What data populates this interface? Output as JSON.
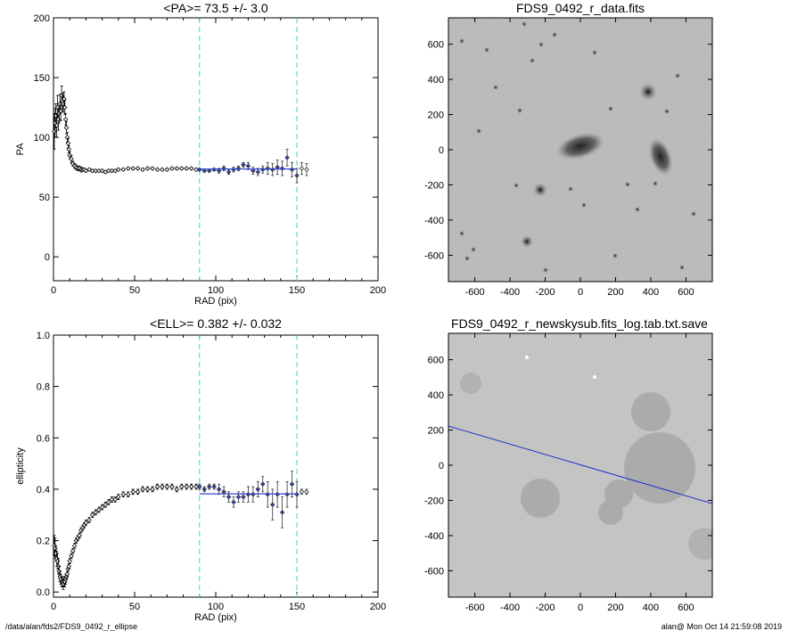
{
  "footer": {
    "path": "/data/alan/fds2/FDS9_0492_r_ellipse",
    "user_time": "alan@  Mon Oct 14 21:59:08 2019"
  },
  "colors": {
    "blue": "#3344cc",
    "cyan": "#44ccdd",
    "black": "#000000"
  },
  "chart_data": [
    {
      "type": "scatter",
      "title": "<PA>=  73.5 +/-   3.0",
      "xlabel": "RAD (pix)",
      "ylabel": "PA",
      "xlim": [
        0,
        200
      ],
      "ylim": [
        -20,
        200
      ],
      "xticks": [
        0,
        50,
        100,
        150,
        200
      ],
      "yticks": [
        0,
        50,
        100,
        150,
        200
      ],
      "vlines": [
        90,
        150
      ],
      "hline_fit": {
        "y": 73.5,
        "x_range": [
          90,
          150
        ]
      },
      "series": [
        {
          "points_x": [
            0.5,
            1,
            1.5,
            2,
            2.5,
            3,
            3.5,
            4,
            4.5,
            5,
            5.5,
            6,
            6.5,
            7,
            7.5,
            8,
            8.5,
            9,
            9.5,
            10,
            11,
            12,
            13,
            14,
            15,
            16,
            17,
            18,
            19,
            20,
            22,
            24,
            26,
            28,
            30,
            32,
            34,
            36,
            38,
            40,
            43,
            46,
            49,
            52,
            55,
            58,
            61,
            64,
            67,
            70,
            73,
            76,
            79,
            82,
            85,
            88
          ],
          "points_y": [
            105,
            112,
            118,
            110,
            125,
            115,
            120,
            128,
            122,
            135,
            130,
            128,
            132,
            125,
            115,
            108,
            100,
            95,
            90,
            85,
            82,
            78,
            76,
            75,
            74,
            74,
            73,
            73,
            73,
            72,
            73,
            72,
            72,
            72,
            72,
            71,
            72,
            72,
            72,
            73,
            73,
            74,
            74,
            74,
            73,
            74,
            74,
            73,
            73,
            73,
            74,
            74,
            74,
            74,
            74,
            73
          ],
          "err": [
            15,
            12,
            10,
            10,
            10,
            9,
            8,
            8,
            8,
            8,
            7,
            7,
            6,
            6,
            5,
            5,
            4,
            4,
            3,
            3,
            3,
            2,
            2,
            2,
            2,
            2,
            2,
            1,
            1,
            1,
            1,
            1,
            1,
            1,
            1,
            1,
            1,
            1,
            1,
            1,
            1,
            1,
            1,
            1,
            1,
            1,
            1,
            1,
            1,
            1,
            1,
            1,
            1,
            1,
            1,
            1
          ]
        },
        {
          "points_x": [
            90,
            93,
            96,
            99,
            102,
            105,
            108,
            111,
            114,
            117,
            120,
            123,
            126,
            129,
            132,
            135,
            138,
            141,
            144,
            147,
            150,
            153,
            156
          ],
          "points_y": [
            73,
            72,
            72,
            73,
            72,
            74,
            71,
            73,
            74,
            77,
            76,
            72,
            71,
            73,
            74,
            73,
            75,
            74,
            83,
            73,
            68,
            74,
            73
          ],
          "err": [
            1,
            1,
            1,
            1,
            2,
            2,
            2,
            2,
            2,
            2,
            3,
            3,
            3,
            3,
            5,
            5,
            6,
            6,
            7,
            6,
            6,
            5,
            5
          ]
        }
      ]
    },
    {
      "type": "scatter",
      "title": "<ELL>= 0.382 +/-  0.032",
      "xlabel": "RAD (pix)",
      "ylabel": "ellipticity",
      "xlim": [
        0,
        200
      ],
      "ylim": [
        -0.02,
        1.0
      ],
      "xticks": [
        0,
        50,
        100,
        150,
        200
      ],
      "yticks": [
        0.0,
        0.2,
        0.4,
        0.6,
        0.8,
        1.0
      ],
      "vlines": [
        90,
        150
      ],
      "hline_fit": {
        "y": 0.382,
        "x_range": [
          90,
          150
        ]
      },
      "series": [
        {
          "points_x": [
            0.5,
            1,
            1.5,
            2,
            2.5,
            3,
            3.5,
            4,
            4.5,
            5,
            5.5,
            6,
            6.5,
            7,
            7.5,
            8,
            8.5,
            9,
            9.5,
            10,
            11,
            12,
            13,
            14,
            15,
            16,
            17,
            18,
            19,
            20,
            22,
            24,
            26,
            28,
            30,
            32,
            34,
            36,
            38,
            40,
            43,
            46,
            49,
            52,
            55,
            58,
            61,
            64,
            67,
            70,
            73,
            76,
            79,
            82,
            85,
            88
          ],
          "points_y": [
            0.18,
            0.17,
            0.15,
            0.13,
            0.12,
            0.1,
            0.08,
            0.06,
            0.05,
            0.04,
            0.04,
            0.03,
            0.04,
            0.04,
            0.05,
            0.06,
            0.07,
            0.09,
            0.1,
            0.12,
            0.14,
            0.16,
            0.18,
            0.2,
            0.21,
            0.22,
            0.24,
            0.25,
            0.26,
            0.27,
            0.28,
            0.3,
            0.31,
            0.32,
            0.33,
            0.34,
            0.35,
            0.36,
            0.36,
            0.37,
            0.38,
            0.38,
            0.39,
            0.39,
            0.4,
            0.4,
            0.4,
            0.41,
            0.41,
            0.41,
            0.41,
            0.4,
            0.41,
            0.41,
            0.41,
            0.41
          ],
          "err": [
            0.04,
            0.04,
            0.03,
            0.03,
            0.03,
            0.03,
            0.02,
            0.02,
            0.02,
            0.02,
            0.02,
            0.02,
            0.02,
            0.02,
            0.02,
            0.01,
            0.01,
            0.01,
            0.01,
            0.01,
            0.01,
            0.01,
            0.01,
            0.01,
            0.01,
            0.01,
            0.01,
            0.01,
            0.01,
            0.01,
            0.01,
            0.01,
            0.01,
            0.01,
            0.01,
            0.01,
            0.01,
            0.01,
            0.01,
            0.01,
            0.01,
            0.01,
            0.01,
            0.01,
            0.01,
            0.01,
            0.01,
            0.01,
            0.01,
            0.01,
            0.01,
            0.01,
            0.01,
            0.01,
            0.01,
            0.01
          ]
        },
        {
          "points_x": [
            90,
            93,
            96,
            99,
            102,
            105,
            108,
            111,
            114,
            117,
            120,
            123,
            126,
            129,
            132,
            135,
            138,
            141,
            144,
            147,
            150,
            153,
            156
          ],
          "points_y": [
            0.41,
            0.4,
            0.41,
            0.41,
            0.4,
            0.39,
            0.37,
            0.35,
            0.37,
            0.37,
            0.38,
            0.38,
            0.4,
            0.42,
            0.38,
            0.34,
            0.38,
            0.31,
            0.38,
            0.42,
            0.38,
            0.39,
            0.39
          ],
          "err": [
            0.01,
            0.01,
            0.01,
            0.01,
            0.02,
            0.02,
            0.02,
            0.02,
            0.02,
            0.02,
            0.03,
            0.03,
            0.03,
            0.03,
            0.05,
            0.06,
            0.05,
            0.06,
            0.05,
            0.05,
            0.05,
            0.01,
            0.01
          ]
        }
      ]
    }
  ],
  "images": [
    {
      "title": "FDS9_0492_r_data.fits",
      "ticks_x": [
        -600,
        -400,
        -200,
        0,
        200,
        400,
        600
      ],
      "ticks_y": [
        600,
        400,
        200,
        0,
        -200,
        -400,
        -600
      ],
      "range": [
        -750,
        750
      ]
    },
    {
      "title": "FDS9_0492_r_newskysub.fits_log.tab.txt.save",
      "ticks_x": [
        -600,
        -400,
        -200,
        0,
        200,
        400,
        600
      ],
      "ticks_y": [
        600,
        400,
        200,
        0,
        -200,
        -400,
        -600
      ],
      "range": [
        -750,
        750
      ],
      "pa_deg": 73.5
    }
  ]
}
